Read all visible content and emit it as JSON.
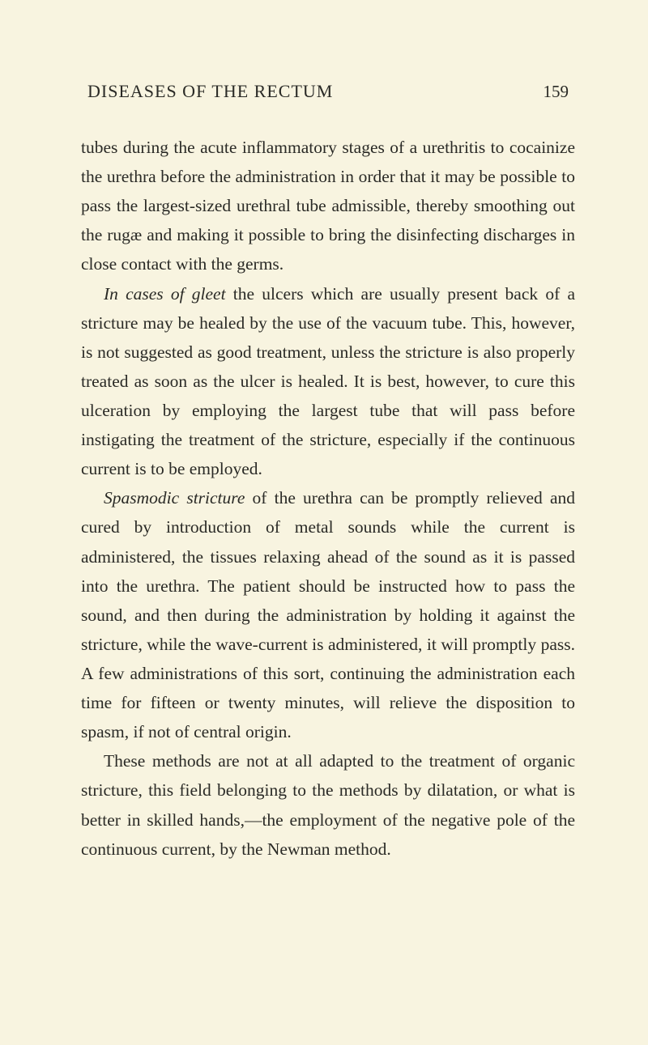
{
  "header": {
    "title": "DISEASES OF THE RECTUM",
    "page_number": "159"
  },
  "paragraphs": {
    "p1": "tubes during the acute inflammatory stages of a urethritis to cocainize the urethra before the administration in order that it may be possible to pass the largest-sized urethral tube admissible, thereby smoothing out the rugæ and making it possible to bring the disinfecting discharges in close contact with the germs.",
    "p2_italic": "In cases of gleet",
    "p2_rest": " the ulcers which are usually present back of a stricture may be healed by the use of the vacuum tube. This, however, is not suggested as good treatment, unless the stricture is also properly treated as soon as the ulcer is healed. It is best, however, to cure this ulceration by employing the largest tube that will pass before instigating the treatment of the stricture, especially if the continuous current is to be employed.",
    "p3_italic": "Spasmodic stricture",
    "p3_rest": " of the urethra can be promptly relieved and cured by introduction of metal sounds while the current is administered, the tissues relaxing ahead of the sound as it is passed into the urethra. The patient should be instructed how to pass the sound, and then during the administration by holding it against the stricture, while the wave-current is administered, it will promptly pass. A few administrations of this sort, continuing the administration each time for fifteen or twenty minutes, will relieve the disposition to spasm, if not of central origin.",
    "p4": "These methods are not at all adapted to the treatment of organic stricture, this field belonging to the methods by dilatation, or what is better in skilled hands,—the employment of the negative pole of the continuous current, by the Newman method."
  },
  "colors": {
    "background": "#f8f4e0",
    "text": "#2a2a26"
  },
  "typography": {
    "header_fontsize": 22,
    "body_fontsize": 21.5,
    "line_height": 1.68,
    "font_family": "Times New Roman"
  }
}
